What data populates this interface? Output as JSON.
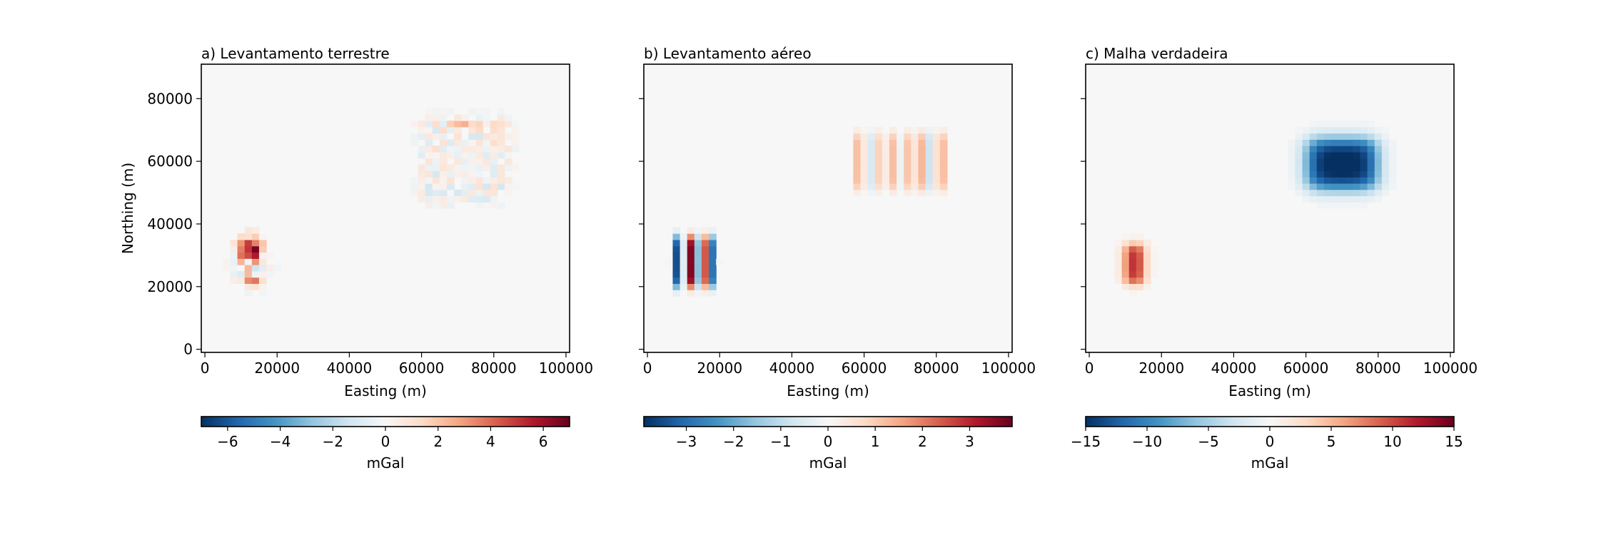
{
  "chart_data": [
    {
      "type": "heatmap",
      "title": "a) Levantamento terrestre",
      "xlabel": "Easting (m)",
      "ylabel": "Northing (m)",
      "xlim": [
        -1000,
        101000
      ],
      "ylim": [
        -1000,
        91000
      ],
      "xticks": [
        "0",
        "20000",
        "40000",
        "60000",
        "80000",
        "100000"
      ],
      "yticks": [
        "0",
        "20000",
        "40000",
        "60000",
        "80000"
      ],
      "colormap": "RdBu_r",
      "colorbar": {
        "label": "mGal",
        "vmin": -7,
        "vmax": 7,
        "ticks": [
          "−6",
          "−4",
          "−2",
          "0",
          "2",
          "4",
          "6"
        ]
      },
      "anomalies": [
        {
          "kind": "noisy",
          "easting": [
            8000,
            17000
          ],
          "northing": [
            20000,
            38000
          ],
          "peak": 6.8
        },
        {
          "kind": "noisy",
          "easting": [
            58000,
            86000
          ],
          "northing": [
            46000,
            74000
          ],
          "peak": 2.2
        }
      ]
    },
    {
      "type": "heatmap",
      "title": "b) Levantamento aéreo",
      "xlabel": "Easting (m)",
      "ylabel": "",
      "xlim": [
        -1000,
        101000
      ],
      "ylim": [
        -1000,
        91000
      ],
      "xticks": [
        "0",
        "20000",
        "40000",
        "60000",
        "80000",
        "100000"
      ],
      "yticks": [],
      "colormap": "RdBu_r",
      "colorbar": {
        "label": "mGal",
        "vmin": -3.9,
        "vmax": 3.9,
        "ticks": [
          "−3",
          "−2",
          "−1",
          "0",
          "1",
          "2",
          "3"
        ]
      },
      "anomalies": [
        {
          "kind": "stripes",
          "easting": [
            6000,
            20000
          ],
          "northing": [
            20000,
            36000
          ],
          "peak": 3.8
        },
        {
          "kind": "stripes",
          "easting": [
            56000,
            84000
          ],
          "northing": [
            50000,
            70000
          ],
          "peak": 1.4
        }
      ]
    },
    {
      "type": "heatmap",
      "title": "c) Malha verdadeira",
      "xlabel": "Easting (m)",
      "ylabel": "",
      "xlim": [
        -1000,
        101000
      ],
      "ylim": [
        -1000,
        91000
      ],
      "xticks": [
        "0",
        "20000",
        "40000",
        "60000",
        "80000",
        "100000"
      ],
      "yticks": [],
      "colormap": "RdBu_r",
      "colorbar": {
        "label": "mGal",
        "vmin": -15,
        "vmax": 15,
        "ticks": [
          "−15",
          "−10",
          "−5",
          "0",
          "5",
          "10",
          "15"
        ]
      },
      "anomalies": [
        {
          "kind": "smooth",
          "easting": [
            10000,
            15000
          ],
          "northing": [
            20000,
            34000
          ],
          "peak": 12
        },
        {
          "kind": "smooth",
          "easting": [
            60000,
            80000
          ],
          "northing": [
            50000,
            68000
          ],
          "peak": -16
        }
      ]
    }
  ]
}
